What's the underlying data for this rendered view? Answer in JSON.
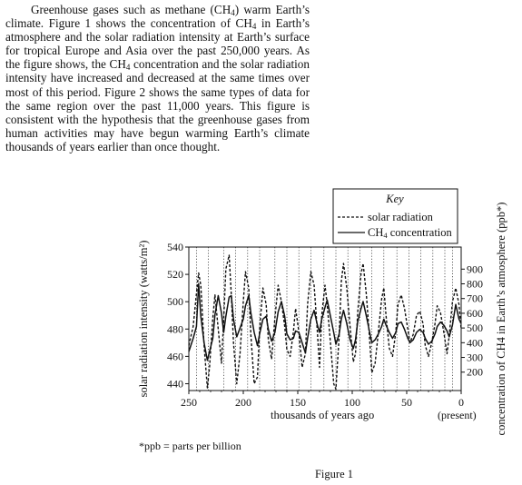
{
  "passage": {
    "s1a": "Greenhouse gases such as methane (CH",
    "s1b": ") warm Earth’s climate. Figure 1 shows the concentration of CH",
    "s1c": " in Earth’s atmosphere and the solar radiation intensity at Earth’s surface for tropical Europe and Asia over the past 250,000 years. As the figure shows, the CH",
    "s1d": " concentration and the solar radiation intensity have increased and decreased at the same times over most of this period. Figure 2 shows the same types of data for the same region over the past 11,000 years. This figure is consistent with the hypothesis that the greenhouse gases from human activities may have begun warming Earth’s climate thousands of years earlier than once thought.",
    "sub4": "4"
  },
  "figure": {
    "caption": "Figure 1",
    "footnote": "*ppb = parts per billion",
    "key_title": "Key",
    "key_solar": "solar radiation",
    "key_ch4_prefix": "CH",
    "key_ch4_sub": "4",
    "key_ch4_suffix": " concentration",
    "present_label": "(present)"
  },
  "chart_data": {
    "type": "line",
    "xlabel": "thousands of years ago",
    "x_reversed": true,
    "xlim": [
      250,
      0
    ],
    "xticks": [
      250,
      200,
      150,
      100,
      50,
      0
    ],
    "ylabel_left": "solar radiation intensity (watts/m²)",
    "ylim_left": [
      435,
      540
    ],
    "yticks_left": [
      440,
      460,
      480,
      500,
      520,
      540
    ],
    "ylabel_right": "concentration of CH4 in Earth’s atmosphere (ppb*)",
    "ylim_right": [
      75,
      1050
    ],
    "yticks_right": [
      200,
      300,
      400,
      500,
      600,
      700,
      800,
      900
    ],
    "vertical_dotted_lines_x": [
      243,
      232,
      218,
      207,
      196,
      185,
      171,
      160,
      149,
      138,
      126,
      115,
      104,
      93,
      82,
      71,
      59,
      48,
      37,
      26,
      15,
      8
    ],
    "series": [
      {
        "name": "solar radiation",
        "style": "dashed",
        "axis": "left",
        "x": [
          250,
          246,
          243,
          241,
          239,
          236,
          233,
          231,
          228,
          226,
          223,
          220,
          218,
          216,
          213,
          211,
          209,
          206,
          203,
          200,
          198,
          195,
          193,
          190,
          187,
          185,
          182,
          179,
          177,
          174,
          171,
          168,
          165,
          162,
          160,
          157,
          154,
          152,
          149,
          146,
          143,
          141,
          138,
          135,
          132,
          130,
          128,
          125,
          123,
          120,
          117,
          115,
          112,
          110,
          108,
          105,
          102,
          99,
          97,
          95,
          92,
          90,
          87,
          84,
          82,
          79,
          76,
          73,
          71,
          69,
          66,
          63,
          60,
          58,
          55,
          52,
          49,
          47,
          44,
          41,
          38,
          35,
          33,
          30,
          27,
          24,
          22,
          19,
          16,
          13,
          11,
          8,
          5,
          2,
          0
        ],
        "y": [
          468,
          482,
          506,
          521,
          512,
          468,
          437,
          452,
          488,
          505,
          480,
          455,
          487,
          524,
          534,
          505,
          470,
          440,
          462,
          500,
          522,
          510,
          475,
          440,
          445,
          480,
          510,
          498,
          472,
          458,
          488,
          512,
          500,
          482,
          465,
          460,
          478,
          495,
          478,
          452,
          462,
          498,
          522,
          512,
          478,
          452,
          490,
          512,
          498,
          470,
          440,
          436,
          475,
          515,
          528,
          510,
          482,
          456,
          462,
          492,
          520,
          528,
          505,
          472,
          448,
          455,
          478,
          502,
          510,
          490,
          466,
          460,
          478,
          498,
          505,
          495,
          480,
          470,
          476,
          490,
          493,
          484,
          468,
          460,
          470,
          484,
          497,
          492,
          478,
          462,
          475,
          500,
          510,
          498,
          480
        ]
      },
      {
        "name": "CH4 concentration",
        "style": "solid",
        "axis": "right",
        "x": [
          250,
          246,
          243,
          241,
          239,
          236,
          233,
          231,
          228,
          226,
          223,
          220,
          218,
          216,
          213,
          211,
          209,
          206,
          203,
          200,
          198,
          195,
          193,
          190,
          187,
          185,
          182,
          179,
          177,
          174,
          171,
          168,
          165,
          162,
          160,
          157,
          154,
          152,
          149,
          146,
          143,
          141,
          138,
          135,
          132,
          130,
          128,
          125,
          123,
          120,
          117,
          115,
          112,
          110,
          108,
          105,
          102,
          99,
          97,
          95,
          92,
          90,
          87,
          84,
          82,
          79,
          76,
          73,
          71,
          69,
          66,
          63,
          60,
          58,
          55,
          52,
          49,
          47,
          44,
          41,
          38,
          35,
          33,
          30,
          27,
          24,
          22,
          19,
          16,
          13,
          11,
          8,
          5,
          2,
          0
        ],
        "y": [
          340,
          430,
          510,
          800,
          580,
          400,
          280,
          340,
          430,
          590,
          720,
          600,
          470,
          580,
          710,
          720,
          560,
          440,
          500,
          560,
          650,
          720,
          600,
          470,
          380,
          460,
          560,
          580,
          490,
          410,
          470,
          610,
          680,
          580,
          460,
          420,
          430,
          480,
          470,
          400,
          330,
          430,
          560,
          620,
          520,
          470,
          560,
          640,
          690,
          580,
          470,
          390,
          460,
          560,
          620,
          530,
          420,
          360,
          420,
          540,
          630,
          680,
          580,
          470,
          400,
          420,
          460,
          510,
          560,
          520,
          470,
          430,
          470,
          530,
          540,
          490,
          430,
          400,
          420,
          470,
          490,
          470,
          430,
          390,
          410,
          460,
          510,
          540,
          520,
          480,
          440,
          520,
          660,
          560,
          530
        ]
      }
    ]
  }
}
